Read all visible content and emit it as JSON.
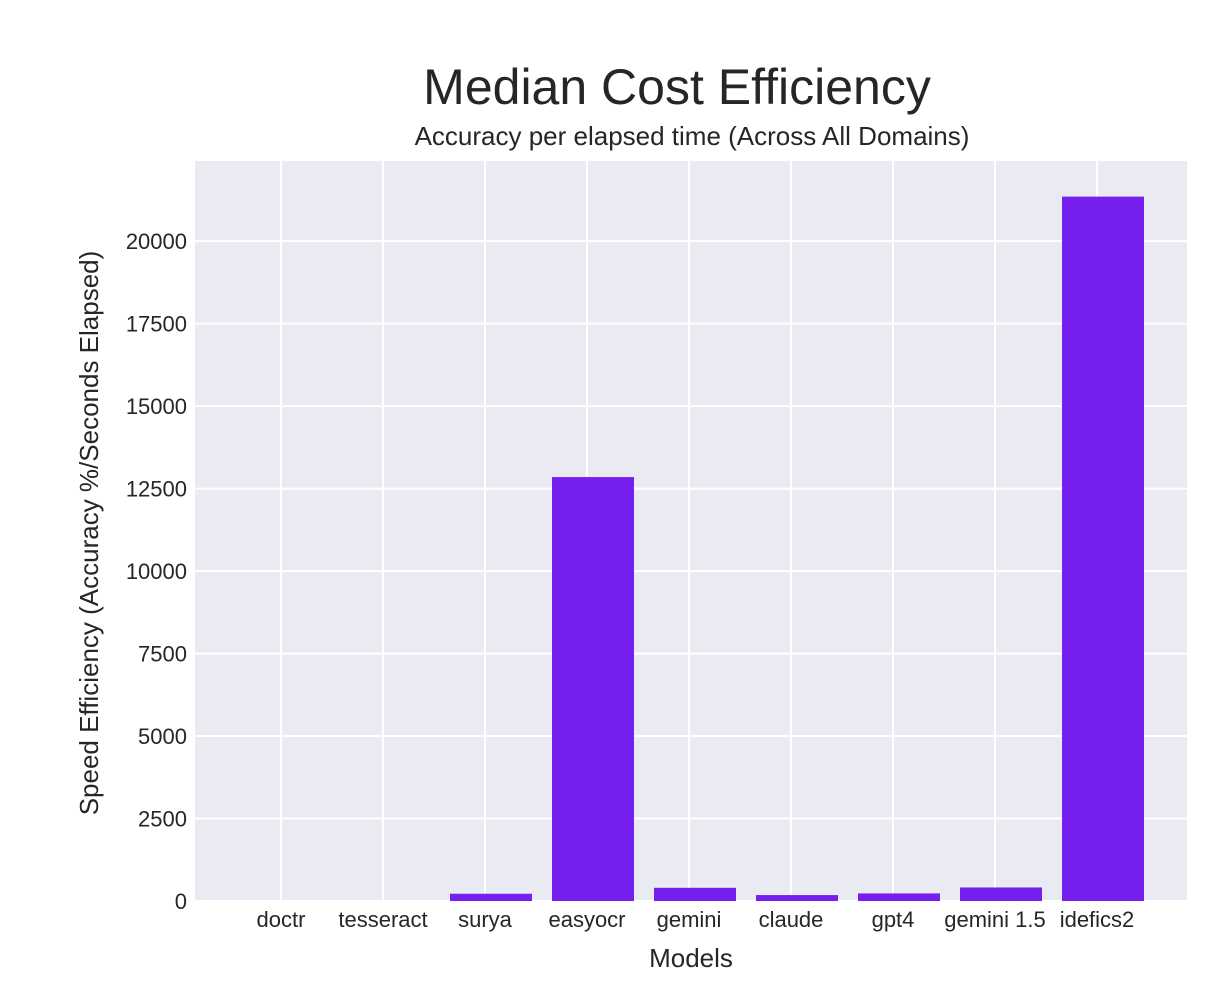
{
  "chart_data": {
    "type": "bar",
    "title": "Median Cost Efficiency",
    "subtitle": "Accuracy per elapsed time (Across All Domains)",
    "xlabel": "Models",
    "ylabel": "Speed Efficiency (Accuracy %/Seconds Elapsed)",
    "categories": [
      "doctr",
      "tesseract",
      "surya",
      "easyocr",
      "gemini",
      "claude",
      "gpt4",
      "gemini 1.5",
      "idefics2"
    ],
    "values": [
      0,
      0,
      220,
      12850,
      400,
      180,
      230,
      410,
      21350
    ],
    "ylim": [
      0,
      22430
    ],
    "yticks": [
      "0",
      "2500",
      "5000",
      "7500",
      "10000",
      "12500",
      "15000",
      "17500",
      "20000"
    ],
    "grid": true,
    "legend": "none",
    "colors": {
      "bar": "#7620f0",
      "plot_background": "#eaeaf2",
      "grid": "#ffffff",
      "text": "#262626"
    }
  }
}
